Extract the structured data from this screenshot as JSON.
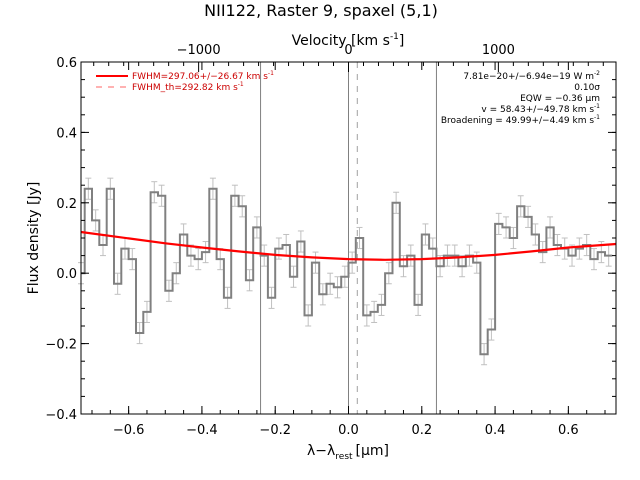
{
  "chart_data": {
    "type": "line",
    "title": "NII122, Raster 9, spaxel (5,1)",
    "xlabel_main": "λ−λ",
    "xlabel_sub": "rest",
    "xlabel_unit": "[μm]",
    "ylabel": "Flux density [Jy]",
    "top_axis_label": "Velocity [km s",
    "top_axis_label_sup": "-1",
    "top_axis_label_end": "]",
    "xlim": [
      -0.73,
      0.73
    ],
    "ylim": [
      -0.4,
      0.6
    ],
    "x_ticks": [
      -0.6,
      -0.4,
      -0.2,
      0.0,
      0.2,
      0.4,
      0.6
    ],
    "x_tick_labels": [
      "−0.6",
      "−0.4",
      "−0.2",
      "0.0",
      "0.2",
      "0.4",
      "0.6"
    ],
    "y_ticks": [
      -0.4,
      -0.2,
      0.0,
      0.2,
      0.4,
      0.6
    ],
    "y_tick_labels": [
      "−0.4",
      "−0.2",
      "0.0",
      "0.2",
      "0.4",
      "0.6"
    ],
    "top_ticks_velocity": [
      -1000,
      0,
      1000
    ],
    "top_tick_labels": [
      "−1000",
      "0",
      "1000"
    ],
    "top_axis_scale_um_per_kms": 0.000409,
    "vertical_lines_solid": [
      -0.24,
      0.0,
      0.24
    ],
    "vertical_line_dashed": 0.024,
    "legend": [
      {
        "text": "FWHM=297.06+/−26.67 km s",
        "sup": "-1",
        "style": "solid",
        "color": "#cc0000"
      },
      {
        "text": "FWHM_th=292.82 km s",
        "sup": "-1",
        "style": "dashed",
        "color": "#cc0000"
      }
    ],
    "annotations": [
      {
        "text": "7.81e−20+/−6.94e−19 W m",
        "sup": "-2"
      },
      {
        "text": "0.10σ",
        "sup": ""
      },
      {
        "text": "EQW = −0.36 μm",
        "sup": ""
      },
      {
        "text": "v = 58.43+/−49.78 km s",
        "sup": "-1"
      },
      {
        "text": "Broadening = 49.99+/−4.49 km s",
        "sup": "-1"
      }
    ],
    "series": [
      {
        "name": "spectrum",
        "style": "step",
        "color": "#808080",
        "x": [
          -0.73,
          -0.71,
          -0.69,
          -0.67,
          -0.65,
          -0.63,
          -0.61,
          -0.59,
          -0.57,
          -0.55,
          -0.53,
          -0.51,
          -0.49,
          -0.47,
          -0.45,
          -0.43,
          -0.41,
          -0.39,
          -0.37,
          -0.35,
          -0.33,
          -0.31,
          -0.29,
          -0.27,
          -0.25,
          -0.23,
          -0.21,
          -0.19,
          -0.17,
          -0.15,
          -0.13,
          -0.11,
          -0.09,
          -0.07,
          -0.05,
          -0.03,
          -0.01,
          0.01,
          0.03,
          0.05,
          0.07,
          0.09,
          0.11,
          0.13,
          0.15,
          0.17,
          0.19,
          0.21,
          0.23,
          0.25,
          0.27,
          0.29,
          0.31,
          0.33,
          0.35,
          0.37,
          0.39,
          0.41,
          0.43,
          0.45,
          0.47,
          0.49,
          0.51,
          0.53,
          0.55,
          0.57,
          0.59,
          0.61,
          0.63,
          0.65,
          0.67,
          0.69,
          0.71
        ],
        "y": [
          0.0,
          0.24,
          0.15,
          0.08,
          0.24,
          -0.03,
          0.07,
          0.04,
          -0.17,
          -0.11,
          0.23,
          0.22,
          -0.05,
          0.0,
          0.11,
          0.05,
          0.04,
          0.06,
          0.24,
          0.04,
          -0.07,
          0.22,
          0.19,
          -0.02,
          0.13,
          0.05,
          -0.07,
          0.07,
          0.08,
          -0.01,
          0.09,
          -0.12,
          0.03,
          -0.06,
          -0.03,
          -0.04,
          -0.01,
          0.03,
          0.1,
          -0.12,
          -0.11,
          -0.09,
          0.0,
          0.2,
          0.02,
          0.05,
          -0.09,
          0.11,
          0.07,
          0.02,
          0.05,
          0.05,
          0.02,
          0.05,
          0.03,
          -0.23,
          -0.16,
          0.14,
          0.13,
          0.1,
          0.19,
          0.16,
          0.11,
          0.06,
          0.13,
          0.08,
          0.07,
          0.05,
          0.07,
          0.08,
          0.04,
          0.06,
          0.05
        ],
        "yerr": 0.03
      },
      {
        "name": "fit",
        "style": "smooth",
        "color": "#ff0000",
        "model": "constant plus quadratic, estimated",
        "x": [
          -0.73,
          -0.6,
          -0.5,
          -0.4,
          -0.3,
          -0.2,
          -0.1,
          0.0,
          0.1,
          0.2,
          0.3,
          0.4,
          0.5,
          0.6,
          0.73
        ],
        "y": [
          0.117,
          0.099,
          0.085,
          0.073,
          0.062,
          0.052,
          0.045,
          0.04,
          0.038,
          0.04,
          0.045,
          0.052,
          0.062,
          0.073,
          0.083
        ]
      }
    ]
  }
}
